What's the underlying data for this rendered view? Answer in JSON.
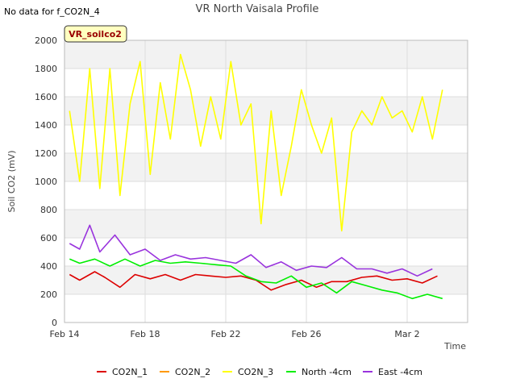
{
  "no_data_note": "No data for f_CO2N_4",
  "site_badge": "VR_soilco2",
  "chart_data": {
    "type": "line",
    "title": "VR North Vaisala Profile",
    "xlabel": "Time",
    "ylabel": "Soil CO2 (mV)",
    "ylim": [
      0,
      2000
    ],
    "xlim": [
      "2024-02-14",
      "2024-03-05"
    ],
    "yticks": [
      0,
      200,
      400,
      600,
      800,
      1000,
      1200,
      1400,
      1600,
      1800,
      2000
    ],
    "xticks": [
      {
        "label": "Feb 14",
        "date": "2024-02-14"
      },
      {
        "label": "Feb 18",
        "date": "2024-02-18"
      },
      {
        "label": "Feb 22",
        "date": "2024-02-22"
      },
      {
        "label": "Feb 26",
        "date": "2024-02-26"
      },
      {
        "label": "Mar 2",
        "date": "2024-03-02"
      }
    ],
    "grid": true,
    "legend_position": "bottom",
    "series": [
      {
        "name": "CO2N_1",
        "color": "#dd0000",
        "x": [
          "2024-02-14T06:00",
          "2024-02-14T18:00",
          "2024-02-15T12:00",
          "2024-02-16T00:00",
          "2024-02-16T18:00",
          "2024-02-17T12:00",
          "2024-02-18T06:00",
          "2024-02-19T00:00",
          "2024-02-19T18:00",
          "2024-02-20T12:00",
          "2024-02-21T06:00",
          "2024-02-22T00:00",
          "2024-02-22T18:00",
          "2024-02-23T12:00",
          "2024-02-24T06:00",
          "2024-02-25T00:00",
          "2024-02-25T18:00",
          "2024-02-26T12:00",
          "2024-02-27T06:00",
          "2024-02-28T00:00",
          "2024-02-28T18:00",
          "2024-02-29T12:00",
          "2024-03-01T06:00",
          "2024-03-02T00:00",
          "2024-03-02T18:00",
          "2024-03-03T12:00"
        ],
        "values": [
          340,
          300,
          360,
          320,
          250,
          340,
          310,
          340,
          300,
          340,
          330,
          320,
          330,
          300,
          230,
          270,
          300,
          250,
          290,
          290,
          320,
          330,
          300,
          310,
          280,
          330
        ]
      },
      {
        "name": "CO2N_2",
        "color": "#ff9900",
        "x": [],
        "values": []
      },
      {
        "name": "CO2N_3",
        "color": "#ffff00",
        "x": [
          "2024-02-14T06:00",
          "2024-02-14T18:00",
          "2024-02-15T06:00",
          "2024-02-15T18:00",
          "2024-02-16T06:00",
          "2024-02-16T18:00",
          "2024-02-17T06:00",
          "2024-02-17T18:00",
          "2024-02-18T06:00",
          "2024-02-18T18:00",
          "2024-02-19T06:00",
          "2024-02-19T18:00",
          "2024-02-20T06:00",
          "2024-02-20T18:00",
          "2024-02-21T06:00",
          "2024-02-21T18:00",
          "2024-02-22T06:00",
          "2024-02-22T18:00",
          "2024-02-23T06:00",
          "2024-02-23T18:00",
          "2024-02-24T06:00",
          "2024-02-24T18:00",
          "2024-02-25T06:00",
          "2024-02-25T18:00",
          "2024-02-26T06:00",
          "2024-02-26T18:00",
          "2024-02-27T06:00",
          "2024-02-27T18:00",
          "2024-02-28T06:00",
          "2024-02-28T18:00",
          "2024-02-29T06:00",
          "2024-02-29T18:00",
          "2024-03-01T06:00",
          "2024-03-01T18:00",
          "2024-03-02T06:00",
          "2024-03-02T18:00",
          "2024-03-03T06:00",
          "2024-03-03T18:00"
        ],
        "values": [
          1500,
          1000,
          1800,
          950,
          1800,
          900,
          1550,
          1850,
          1050,
          1700,
          1300,
          1900,
          1650,
          1250,
          1600,
          1300,
          1850,
          1400,
          1550,
          700,
          1500,
          900,
          1250,
          1650,
          1400,
          1200,
          1450,
          650,
          1350,
          1500,
          1400,
          1600,
          1450,
          1500,
          1350,
          1600,
          1300,
          1650
        ]
      },
      {
        "name": "North -4cm",
        "color": "#00ee00",
        "x": [
          "2024-02-14T06:00",
          "2024-02-14T18:00",
          "2024-02-15T12:00",
          "2024-02-16T06:00",
          "2024-02-17T00:00",
          "2024-02-17T18:00",
          "2024-02-18T12:00",
          "2024-02-19T06:00",
          "2024-02-20T00:00",
          "2024-02-20T18:00",
          "2024-02-21T12:00",
          "2024-02-22T06:00",
          "2024-02-23T00:00",
          "2024-02-23T18:00",
          "2024-02-24T12:00",
          "2024-02-25T06:00",
          "2024-02-26T00:00",
          "2024-02-26T18:00",
          "2024-02-27T12:00",
          "2024-02-28T06:00",
          "2024-02-29T00:00",
          "2024-02-29T18:00",
          "2024-03-01T12:00",
          "2024-03-02T06:00",
          "2024-03-03T00:00",
          "2024-03-03T18:00"
        ],
        "values": [
          450,
          420,
          450,
          400,
          450,
          400,
          440,
          420,
          430,
          420,
          410,
          400,
          330,
          290,
          280,
          330,
          250,
          280,
          210,
          290,
          260,
          230,
          210,
          170,
          200,
          170
        ]
      },
      {
        "name": "East -4cm",
        "color": "#9933dd",
        "x": [
          "2024-02-14T06:00",
          "2024-02-14T18:00",
          "2024-02-15T06:00",
          "2024-02-15T18:00",
          "2024-02-16T12:00",
          "2024-02-17T06:00",
          "2024-02-18T00:00",
          "2024-02-18T18:00",
          "2024-02-19T12:00",
          "2024-02-20T06:00",
          "2024-02-21T00:00",
          "2024-02-21T18:00",
          "2024-02-22T12:00",
          "2024-02-23T06:00",
          "2024-02-24T00:00",
          "2024-02-24T18:00",
          "2024-02-25T12:00",
          "2024-02-26T06:00",
          "2024-02-27T00:00",
          "2024-02-27T18:00",
          "2024-02-28T12:00",
          "2024-02-29T06:00",
          "2024-03-01T00:00",
          "2024-03-01T18:00",
          "2024-03-02T12:00",
          "2024-03-03T06:00"
        ],
        "values": [
          560,
          520,
          690,
          500,
          620,
          480,
          520,
          440,
          480,
          450,
          460,
          440,
          420,
          480,
          390,
          430,
          370,
          400,
          390,
          460,
          380,
          380,
          350,
          380,
          330,
          380
        ]
      }
    ]
  }
}
